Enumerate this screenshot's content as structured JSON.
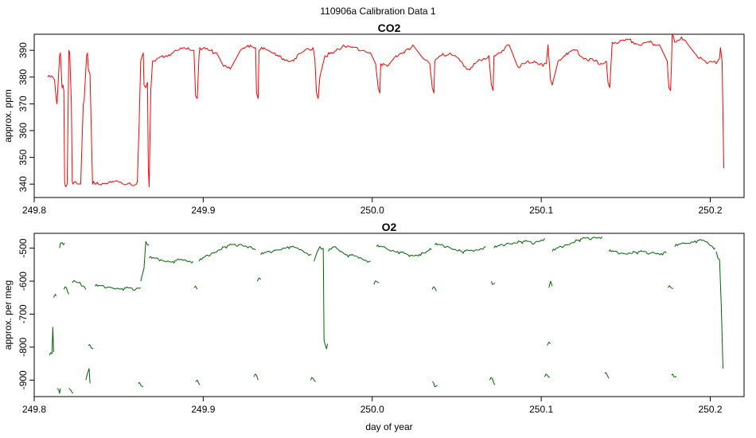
{
  "title": "110906a   Calibration Data 1",
  "chart_data": [
    {
      "type": "line",
      "title": "CO2",
      "xlabel": "",
      "ylabel": "approx. ppm",
      "color": "#ff0000",
      "xlim": [
        249.8,
        250.22
      ],
      "ylim": [
        335,
        396
      ],
      "x_ticks": [
        "249.8",
        "249.9",
        "250.0",
        "250.1",
        "250.2"
      ],
      "x_tick_values": [
        249.8,
        249.9,
        250.0,
        250.1,
        250.2
      ],
      "y_ticks": [
        "340",
        "350",
        "360",
        "370",
        "380",
        "390"
      ],
      "y_tick_values": [
        340,
        350,
        360,
        370,
        380,
        390
      ],
      "series": [
        {
          "x": [
            249.808,
            249.811,
            249.812,
            249.813,
            249.8135,
            249.8145,
            249.815,
            249.8155,
            249.8165,
            249.817,
            249.8175,
            249.818,
            249.8185,
            249.8195,
            249.8205,
            249.821,
            249.822,
            249.8225,
            249.823,
            249.8245,
            249.826,
            249.8275,
            249.829,
            249.8295,
            249.831,
            249.8315,
            249.832,
            249.833,
            249.8345,
            249.835,
            249.836,
            249.8365,
            249.838,
            249.845,
            249.855,
            249.8605,
            249.861,
            249.862,
            249.863,
            249.8645,
            249.865,
            249.866,
            249.867,
            249.8675,
            249.868,
            249.869,
            249.87,
            249.873,
            249.878,
            249.885,
            249.891,
            249.8945,
            249.8955,
            249.8965,
            249.8975,
            249.898,
            249.903,
            249.908,
            249.912,
            249.916,
            249.922,
            249.928,
            249.931,
            249.9315,
            249.9325,
            249.933,
            249.936,
            249.943,
            249.952,
            249.958,
            249.965,
            249.966,
            249.967,
            249.968,
            249.969,
            249.972,
            249.977,
            249.983,
            249.988,
            249.995,
            249.999,
            250.002,
            250.0035,
            250.0045,
            250.005,
            250.009,
            250.014,
            250.019,
            250.024,
            250.03,
            250.034,
            250.0355,
            250.0365,
            250.037,
            250.041,
            250.046,
            250.052,
            250.057,
            250.061,
            250.066,
            250.069,
            250.0705,
            250.0715,
            250.072,
            250.077,
            250.081,
            250.086,
            250.09,
            250.096,
            250.101,
            250.103,
            250.104,
            250.1055,
            250.1065,
            250.11,
            250.115,
            250.12,
            250.126,
            250.131,
            250.136,
            250.1385,
            250.1395,
            250.1405,
            250.142,
            250.146,
            250.152,
            250.158,
            250.164,
            250.17,
            250.1745,
            250.1755,
            250.1765,
            250.177,
            250.1775,
            250.179,
            250.183,
            250.187,
            250.192,
            250.198,
            250.2025,
            250.2035,
            250.2055,
            250.206,
            250.207,
            250.208
          ],
          "y": [
            380,
            380,
            379,
            372,
            370,
            382,
            388,
            389,
            376,
            377,
            375,
            341,
            339,
            340,
            390,
            389,
            370,
            341,
            340,
            341,
            340,
            340,
            370,
            371,
            388,
            389,
            383,
            381,
            340,
            341,
            340,
            340,
            340,
            341,
            340,
            340,
            341,
            361,
            386,
            389,
            377,
            376,
            378,
            346,
            339,
            375,
            386,
            387,
            388,
            390,
            391,
            390,
            373,
            372,
            388,
            391,
            390,
            389,
            384,
            383,
            390,
            392,
            391,
            374,
            372,
            390,
            391,
            388,
            386,
            389,
            391,
            387,
            374,
            372,
            380,
            388,
            389,
            392,
            391,
            390,
            389,
            385,
            376,
            374,
            385,
            384,
            388,
            389,
            392,
            387,
            385,
            376,
            374,
            386,
            388,
            389,
            386,
            383,
            385,
            387,
            388,
            377,
            375,
            388,
            390,
            392,
            384,
            385,
            386,
            384,
            385,
            392,
            379,
            377,
            386,
            389,
            390,
            387,
            386,
            385,
            386,
            378,
            376,
            393,
            393,
            394,
            392,
            393,
            392,
            386,
            376,
            375,
            384,
            396,
            393,
            395,
            392,
            388,
            385,
            386,
            385,
            387,
            391,
            386,
            346
          ]
        }
      ]
    },
    {
      "type": "line",
      "title": "O2",
      "xlabel": "day of year",
      "ylabel": "approx. per meg",
      "color": "#006400",
      "xlim": [
        249.8,
        250.22
      ],
      "ylim": [
        -950,
        -455
      ],
      "x_ticks": [
        "249.8",
        "249.9",
        "250.0",
        "250.1",
        "250.2"
      ],
      "x_tick_values": [
        249.8,
        249.9,
        250.0,
        250.1,
        250.2
      ],
      "y_ticks": [
        "-900",
        "-800",
        "-700",
        "-600",
        "-500"
      ],
      "y_tick_values": [
        -900,
        -800,
        -700,
        -600,
        -500
      ],
      "series": [
        {
          "segments": [
            {
              "x": [
                249.809,
                249.8105,
                249.811,
                249.8115
              ],
              "y": [
                -825,
                -820,
                -740,
                -815
              ]
            },
            {
              "x": [
                249.8115,
                249.8125,
                249.813
              ],
              "y": [
                -650,
                -640,
                -645
              ]
            },
            {
              "x": [
                249.8135,
                249.8145,
                249.815,
                249.8155
              ],
              "y": [
                -925,
                -930,
                -940,
                -925
              ]
            },
            {
              "x": [
                249.815,
                249.8155,
                249.8165,
                249.818
              ],
              "y": [
                -500,
                -485,
                -483,
                -485
              ]
            },
            {
              "x": [
                249.8175,
                249.819,
                249.8205
              ],
              "y": [
                -625,
                -620,
                -640
              ]
            },
            {
              "x": [
                249.8205,
                249.8215,
                249.823
              ],
              "y": [
                -925,
                -930,
                -940
              ]
            },
            {
              "x": [
                249.8225,
                249.8245,
                249.827,
                249.829,
                249.8305
              ],
              "y": [
                -605,
                -602,
                -603,
                -615,
                -625
              ]
            },
            {
              "x": [
                249.8305,
                249.8315,
                249.8325,
                249.833
              ],
              "y": [
                -900,
                -880,
                -865,
                -910
              ]
            },
            {
              "x": [
                249.832,
                249.8335,
                249.835
              ],
              "y": [
                -795,
                -800,
                -805
              ]
            },
            {
              "x": [
                249.836,
                249.845,
                249.852,
                249.86,
                249.863
              ],
              "y": [
                -615,
                -618,
                -622,
                -625,
                -620
              ]
            },
            {
              "x": [
                249.8615,
                249.863,
                249.8645
              ],
              "y": [
                -910,
                -915,
                -920
              ]
            },
            {
              "x": [
                249.863,
                249.865,
                249.866,
                249.868
              ],
              "y": [
                -600,
                -560,
                -480,
                -490
              ]
            },
            {
              "x": [
                249.868,
                249.875,
                249.882,
                249.888,
                249.894
              ],
              "y": [
                -530,
                -535,
                -540,
                -537,
                -540
              ]
            },
            {
              "x": [
                249.8945,
                249.8955,
                249.8965
              ],
              "y": [
                -620,
                -615,
                -625
              ]
            },
            {
              "x": [
                249.8955,
                249.8965,
                249.898
              ],
              "y": [
                -905,
                -900,
                -915
              ]
            },
            {
              "x": [
                249.8975,
                249.905,
                249.913,
                249.921,
                249.928,
                249.931
              ],
              "y": [
                -540,
                -515,
                -495,
                -490,
                -495,
                -505
              ]
            },
            {
              "x": [
                249.93,
                249.9315,
                249.9325
              ],
              "y": [
                -890,
                -885,
                -900
              ]
            },
            {
              "x": [
                249.932,
                249.933,
                249.934
              ],
              "y": [
                -600,
                -590,
                -595
              ]
            },
            {
              "x": [
                249.934,
                249.943,
                249.95,
                249.957,
                249.964
              ],
              "y": [
                -520,
                -505,
                -495,
                -505,
                -520
              ]
            },
            {
              "x": [
                249.9635,
                249.965,
                249.9665
              ],
              "y": [
                -900,
                -895,
                -905
              ]
            },
            {
              "x": [
                249.9655,
                249.9675,
                249.969,
                249.971
              ],
              "y": [
                -540,
                -510,
                -495,
                -500
              ]
            },
            {
              "x": [
                249.971,
                249.9715,
                249.973,
                249.9735
              ],
              "y": [
                -500,
                -780,
                -805,
                -790
              ]
            },
            {
              "x": [
                249.974,
                249.978,
                249.985,
                249.992,
                249.999
              ],
              "y": [
                -510,
                -495,
                -520,
                -530,
                -540
              ]
            },
            {
              "x": [
                250.001,
                250.0025,
                250.004
              ],
              "y": [
                -610,
                -600,
                -605
              ]
            },
            {
              "x": [
                250.0025,
                250.008,
                250.015,
                250.022,
                250.03,
                250.035
              ],
              "y": [
                -495,
                -500,
                -510,
                -525,
                -515,
                -505
              ]
            },
            {
              "x": [
                250.0355,
                250.037,
                250.0385
              ],
              "y": [
                -905,
                -920,
                -915
              ]
            },
            {
              "x": [
                250.0355,
                250.037,
                250.038
              ],
              "y": [
                -625,
                -620,
                -630
              ]
            },
            {
              "x": [
                250.037,
                250.045,
                250.053,
                250.06,
                250.067
              ],
              "y": [
                -490,
                -495,
                -510,
                -510,
                -495
              ]
            },
            {
              "x": [
                250.0695,
                250.071,
                250.0725
              ],
              "y": [
                -900,
                -895,
                -915
              ]
            },
            {
              "x": [
                250.0705,
                250.071,
                250.0725
              ],
              "y": [
                -600,
                -610,
                -605
              ]
            },
            {
              "x": [
                250.072,
                250.08,
                250.088,
                250.096,
                250.102
              ],
              "y": [
                -500,
                -485,
                -480,
                -485,
                -470
              ]
            },
            {
              "x": [
                250.102,
                250.1035,
                250.105
              ],
              "y": [
                -890,
                -885,
                -892
              ]
            },
            {
              "x": [
                250.1035,
                250.1045,
                250.1055
              ],
              "y": [
                -795,
                -785,
                -790
              ]
            },
            {
              "x": [
                250.1045,
                250.1055,
                250.1065
              ],
              "y": [
                -620,
                -600,
                -615
              ]
            },
            {
              "x": [
                250.1065,
                250.114,
                250.122,
                250.13,
                250.136
              ],
              "y": [
                -510,
                -490,
                -475,
                -470,
                -465
              ]
            },
            {
              "x": [
                250.1375,
                250.139,
                250.14
              ],
              "y": [
                -880,
                -885,
                -895
              ]
            },
            {
              "x": [
                250.14,
                250.148,
                250.156,
                250.165,
                250.174
              ],
              "y": [
                -510,
                -515,
                -512,
                -515,
                -515
              ]
            },
            {
              "x": [
                250.175,
                250.1765,
                250.178
              ],
              "y": [
                -620,
                -618,
                -622
              ]
            },
            {
              "x": [
                250.177,
                250.1785,
                250.18
              ],
              "y": [
                -885,
                -890,
                -888
              ]
            },
            {
              "x": [
                250.179,
                250.185,
                250.191,
                250.197,
                250.203
              ],
              "y": [
                -495,
                -485,
                -478,
                -480,
                -500
              ]
            },
            {
              "x": [
                250.2035,
                250.2045,
                250.2055,
                250.2065,
                250.2075
              ],
              "y": [
                -510,
                -530,
                -535,
                -670,
                -865
              ]
            }
          ]
        }
      ]
    }
  ]
}
